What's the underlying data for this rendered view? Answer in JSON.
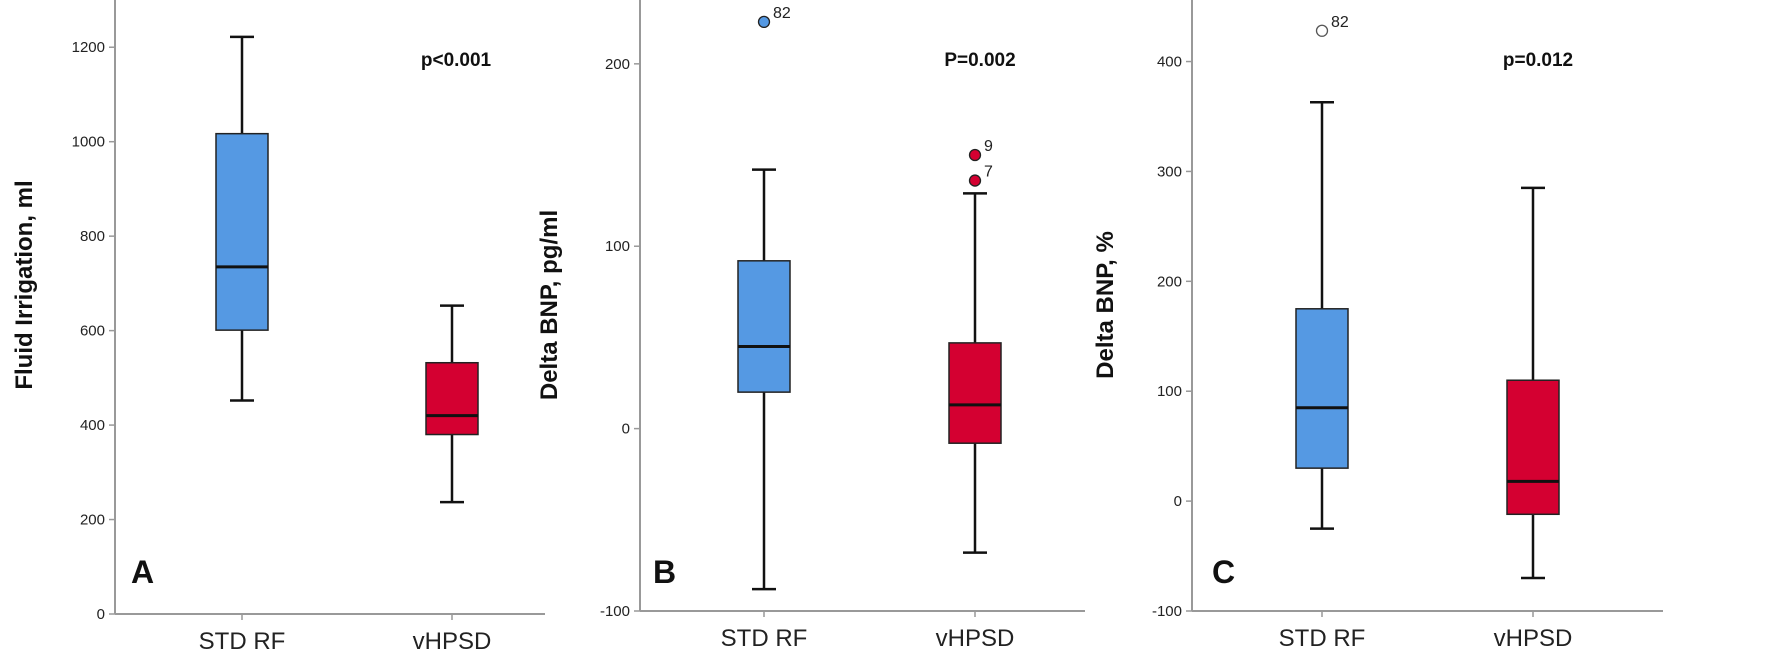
{
  "chart_data": [
    {
      "type": "box",
      "panel_label": "A",
      "ylabel": "Fluid Irrigation, ml",
      "annotation": "p<0.001",
      "ylim": [
        0,
        1300
      ],
      "yticks": [
        0,
        200,
        400,
        600,
        800,
        1000,
        1200
      ],
      "categories": [
        "STD RF",
        "vHPSD"
      ],
      "boxes": [
        {
          "category": "STD RF",
          "color": "#5599e3",
          "min": 452,
          "q1": 601,
          "median": 735,
          "q3": 1017,
          "max": 1222,
          "outliers": []
        },
        {
          "category": "vHPSD",
          "color": "#d40031",
          "min": 237,
          "q1": 380,
          "median": 420,
          "q3": 532,
          "max": 653,
          "outliers": []
        }
      ]
    },
    {
      "type": "box",
      "panel_label": "B",
      "ylabel": "Delta BNP, pg/ml",
      "annotation": "P=0.002",
      "ylim": [
        -100,
        235
      ],
      "yticks": [
        -100,
        0,
        100,
        200
      ],
      "categories": [
        "STD RF",
        "vHPSD"
      ],
      "boxes": [
        {
          "category": "STD RF",
          "color": "#5599e3",
          "min": -88,
          "q1": 20,
          "median": 45,
          "q3": 92,
          "max": 142,
          "outliers": [
            {
              "value": 223,
              "label": "82"
            }
          ]
        },
        {
          "category": "vHPSD",
          "color": "#d40031",
          "min": -68,
          "q1": -8,
          "median": 13,
          "q3": 47,
          "max": 129,
          "outliers": [
            {
              "value": 150,
              "label": "9"
            },
            {
              "value": 136,
              "label": "7"
            }
          ]
        }
      ]
    },
    {
      "type": "box",
      "panel_label": "C",
      "ylabel": "Delta BNP, %",
      "annotation": "p=0.012",
      "ylim": [
        -100,
        456
      ],
      "yticks": [
        -100,
        0,
        100,
        200,
        300,
        400
      ],
      "categories": [
        "STD RF",
        "vHPSD"
      ],
      "boxes": [
        {
          "category": "STD RF",
          "color": "#5599e3",
          "min": -25,
          "q1": 30,
          "median": 85,
          "q3": 175,
          "max": 363,
          "outliers": [
            {
              "value": 428,
              "label": "82",
              "hollow": true
            }
          ]
        },
        {
          "category": "vHPSD",
          "color": "#d40031",
          "min": -70,
          "q1": -12,
          "median": 18,
          "q3": 110,
          "max": 285,
          "outliers": []
        }
      ]
    }
  ]
}
